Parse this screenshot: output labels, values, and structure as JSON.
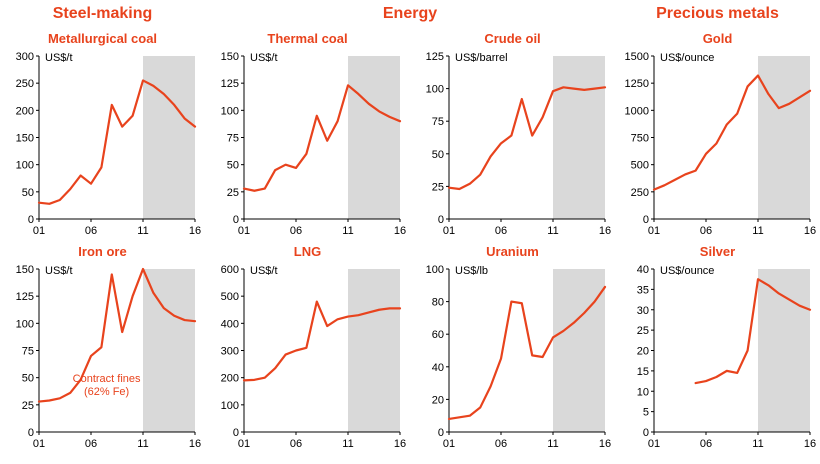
{
  "colors": {
    "accent": "#e8431d",
    "line": "#e8431d",
    "band": "#d9d9d9",
    "axis": "#000000",
    "tick_text": "#000000"
  },
  "group_headers": [
    {
      "label": "Steel-making"
    },
    {
      "label": "Energy"
    },
    {
      "label": "Precious metals"
    }
  ],
  "chart_data": [
    {
      "type": "line",
      "title": "Metallurgical coal",
      "unit_label": "US$/t",
      "x_range": [
        2001,
        2016
      ],
      "xtick_values": [
        2001,
        2006,
        2011,
        2016
      ],
      "xtick_labels": [
        "01",
        "06",
        "11",
        "16"
      ],
      "ylim": [
        0,
        300
      ],
      "yticks": [
        0,
        50,
        100,
        150,
        200,
        250,
        300
      ],
      "shaded_region": [
        2011,
        2016
      ],
      "values": [
        30,
        28,
        35,
        55,
        80,
        65,
        95,
        210,
        170,
        190,
        255,
        245,
        230,
        210,
        185,
        170
      ]
    },
    {
      "type": "line",
      "title": "Thermal coal",
      "unit_label": "US$/t",
      "x_range": [
        2001,
        2016
      ],
      "xtick_values": [
        2001,
        2006,
        2011,
        2016
      ],
      "xtick_labels": [
        "01",
        "06",
        "11",
        "16"
      ],
      "ylim": [
        0,
        150
      ],
      "yticks": [
        0,
        25,
        50,
        75,
        100,
        125,
        150
      ],
      "shaded_region": [
        2011,
        2016
      ],
      "values": [
        28,
        26,
        28,
        45,
        50,
        47,
        60,
        95,
        72,
        90,
        123,
        115,
        106,
        99,
        94,
        90
      ]
    },
    {
      "type": "line",
      "title": "Crude oil",
      "unit_label": "US$/barrel",
      "x_range": [
        2001,
        2016
      ],
      "xtick_values": [
        2001,
        2006,
        2011,
        2016
      ],
      "xtick_labels": [
        "01",
        "06",
        "11",
        "16"
      ],
      "ylim": [
        0,
        125
      ],
      "yticks": [
        0,
        25,
        50,
        75,
        100,
        125
      ],
      "shaded_region": [
        2011,
        2016
      ],
      "values": [
        24,
        23,
        27,
        34,
        48,
        58,
        64,
        92,
        64,
        78,
        98,
        101,
        100,
        99,
        100,
        101
      ]
    },
    {
      "type": "line",
      "title": "Gold",
      "unit_label": "US$/ounce",
      "x_range": [
        2001,
        2016
      ],
      "xtick_values": [
        2001,
        2006,
        2011,
        2016
      ],
      "xtick_labels": [
        "01",
        "06",
        "11",
        "16"
      ],
      "ylim": [
        0,
        1500
      ],
      "yticks": [
        0,
        250,
        500,
        750,
        1000,
        1250,
        1500
      ],
      "shaded_region": [
        2011,
        2016
      ],
      "values": [
        270,
        310,
        360,
        410,
        445,
        600,
        695,
        870,
        970,
        1220,
        1320,
        1150,
        1020,
        1060,
        1120,
        1180
      ]
    },
    {
      "type": "line",
      "title": "Iron ore",
      "unit_label": "US$/t",
      "x_range": [
        2001,
        2016
      ],
      "xtick_values": [
        2001,
        2006,
        2011,
        2016
      ],
      "xtick_labels": [
        "01",
        "06",
        "11",
        "16"
      ],
      "ylim": [
        0,
        150
      ],
      "yticks": [
        0,
        25,
        50,
        75,
        100,
        125,
        150
      ],
      "shaded_region": [
        2011,
        2016
      ],
      "annotation": {
        "lines": [
          "Contract fines",
          "(62% Fe)"
        ],
        "x": 2007.5,
        "y": 46
      },
      "values": [
        28,
        29,
        31,
        36,
        48,
        70,
        78,
        145,
        92,
        125,
        150,
        128,
        114,
        107,
        103,
        102
      ]
    },
    {
      "type": "line",
      "title": "LNG",
      "unit_label": "US$/t",
      "x_range": [
        2001,
        2016
      ],
      "xtick_values": [
        2001,
        2006,
        2011,
        2016
      ],
      "xtick_labels": [
        "01",
        "06",
        "11",
        "16"
      ],
      "ylim": [
        0,
        600
      ],
      "yticks": [
        0,
        100,
        200,
        300,
        400,
        500,
        600
      ],
      "shaded_region": [
        2011,
        2016
      ],
      "values": [
        190,
        192,
        200,
        235,
        285,
        300,
        310,
        480,
        390,
        415,
        425,
        430,
        440,
        450,
        455,
        455
      ]
    },
    {
      "type": "line",
      "title": "Uranium",
      "unit_label": "US$/lb",
      "x_range": [
        2001,
        2016
      ],
      "xtick_values": [
        2001,
        2006,
        2011,
        2016
      ],
      "xtick_labels": [
        "01",
        "06",
        "11",
        "16"
      ],
      "ylim": [
        0,
        100
      ],
      "yticks": [
        0,
        20,
        40,
        60,
        80,
        100
      ],
      "shaded_region": [
        2011,
        2016
      ],
      "values": [
        8,
        9,
        10,
        15,
        28,
        45,
        80,
        79,
        47,
        46,
        58,
        62,
        67,
        73,
        80,
        89
      ]
    },
    {
      "type": "line",
      "title": "Silver",
      "unit_label": "US$/ounce",
      "x_range": [
        2001,
        2016
      ],
      "xtick_values": [
        2001,
        2006,
        2011,
        2016
      ],
      "xtick_labels": [
        "01",
        "06",
        "11",
        "16"
      ],
      "ylim": [
        0,
        40
      ],
      "yticks": [
        0,
        5,
        10,
        15,
        20,
        25,
        30,
        35,
        40
      ],
      "shaded_region": [
        2011,
        2016
      ],
      "values": [
        null,
        null,
        null,
        null,
        12,
        12.5,
        13.5,
        15,
        14.5,
        20,
        37.5,
        36,
        34,
        32.5,
        31,
        30
      ]
    }
  ]
}
